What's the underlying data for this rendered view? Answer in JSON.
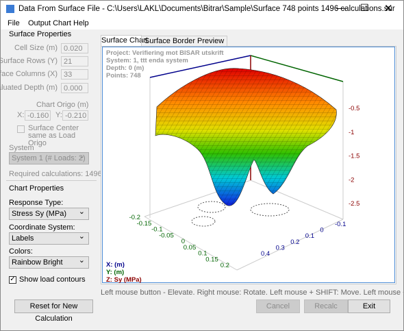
{
  "window": {
    "title": "Data From Surface File - C:\\Users\\LAKL\\Documents\\Bitrar\\Sample\\Surface 748 points 1496 calculations.sur"
  },
  "menu": [
    "File",
    "Output Chart",
    "Help"
  ],
  "surface_properties": {
    "header": "Surface Properties",
    "fields": [
      {
        "label": "Cell Size (m)",
        "value": "0.020"
      },
      {
        "label": "Surface Rows (Y)",
        "value": "21"
      },
      {
        "label": "Surface Columns (X)",
        "value": "33"
      },
      {
        "label": "Evaluated Depth (m)",
        "value": "0.000"
      }
    ],
    "origo_label": "Chart Origo (m)",
    "x_label": "X:",
    "x_value": "-0.160",
    "y_label": "Y:",
    "y_value": "-0.210",
    "center_checkbox": "Surface Center same as Load Origo",
    "system_label": "System",
    "system_value": "System 1  (# Loads: 2)",
    "required": "Required calculations: 1496"
  },
  "chart_properties": {
    "header": "Chart Properties",
    "response_label": "Response Type:",
    "response_value": "Stress Sy (MPa)",
    "coord_label": "Coordinate System:",
    "coord_value": "Labels",
    "colors_label": "Colors:",
    "colors_value": "Rainbow Bright",
    "contours_checkbox": "Show load contours"
  },
  "tabs": [
    "Surface Chart",
    "Surface Border Preview"
  ],
  "chart": {
    "info": [
      "Project: Verifiering mot BISAR utskrift",
      "System: 1, ttt enda system",
      "Depth: 0 (m)",
      "Points: 748"
    ],
    "legend": [
      "X: (m)",
      "Y: (m)",
      "Z: Sy (MPa)"
    ],
    "xticks": [
      -0.2,
      -0.15,
      -0.1,
      -0.05,
      0,
      0.05,
      0.1,
      0.15,
      0.2
    ],
    "yticks": [
      0.4,
      0.3,
      0.2,
      0.1,
      0,
      -0.1
    ],
    "zticks": [
      -0.5,
      -1,
      -1.5,
      -2,
      -2.5
    ]
  },
  "status": "Left mouse button - Elevate. Right mouse: Rotate. Left mouse + SHIFT: Move. Left mouse + CTRL or wheel: Zoom",
  "buttons": {
    "reset": "Reset for New Calculation",
    "cancel": "Cancel",
    "recalc": "Recalc",
    "exit": "Exit"
  }
}
